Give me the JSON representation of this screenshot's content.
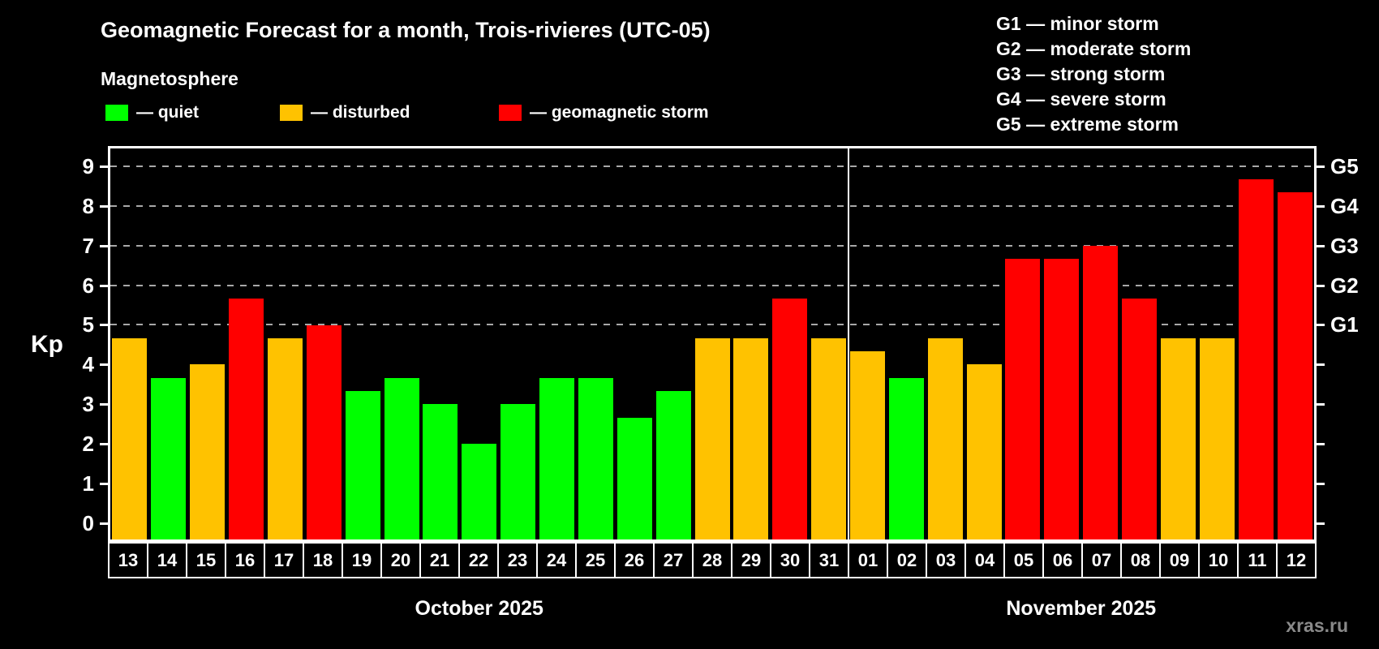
{
  "title": "Geomagnetic Forecast for a month, Trois-rivieres (UTC-05)",
  "subtitle": "Magnetosphere",
  "watermark": "xras.ru",
  "colors": {
    "background": "#000000",
    "quiet": "#00ff00",
    "disturbed": "#ffc200",
    "storm": "#ff0000",
    "frame": "#ffffff",
    "gridline": "#a8a8a8",
    "watermark": "#8a8a8a"
  },
  "legend": {
    "items": [
      {
        "status": "quiet",
        "label": "— quiet"
      },
      {
        "status": "disturbed",
        "label": "— disturbed"
      },
      {
        "status": "storm",
        "label": "— geomagnetic storm"
      }
    ]
  },
  "g_legend": [
    "G1 — minor storm",
    "G2 — moderate storm",
    "G3 — strong storm",
    "G4 — severe storm",
    "G5 — extreme storm"
  ],
  "chart_data": {
    "type": "bar",
    "ylabel": "Kp",
    "y_ticks": [
      0,
      1,
      2,
      3,
      4,
      5,
      6,
      7,
      8,
      9
    ],
    "ylim": [
      -0.4,
      9.44
    ],
    "grid": "dashed horizontal at Kp 5-9 only",
    "gridlines_kp": [
      5,
      6,
      7,
      8,
      9
    ],
    "right_axis_labels": [
      {
        "kp": 5,
        "label": "G1"
      },
      {
        "kp": 6,
        "label": "G2"
      },
      {
        "kp": 7,
        "label": "G3"
      },
      {
        "kp": 8,
        "label": "G4"
      },
      {
        "kp": 9,
        "label": "G5"
      }
    ],
    "months": [
      {
        "label": "October 2025",
        "bars": [
          {
            "day": "13",
            "kp": 4.67,
            "status": "disturbed"
          },
          {
            "day": "14",
            "kp": 3.67,
            "status": "quiet"
          },
          {
            "day": "15",
            "kp": 4.0,
            "status": "disturbed"
          },
          {
            "day": "16",
            "kp": 5.67,
            "status": "storm"
          },
          {
            "day": "17",
            "kp": 4.67,
            "status": "disturbed"
          },
          {
            "day": "18",
            "kp": 5.0,
            "status": "storm"
          },
          {
            "day": "19",
            "kp": 3.33,
            "status": "quiet"
          },
          {
            "day": "20",
            "kp": 3.67,
            "status": "quiet"
          },
          {
            "day": "21",
            "kp": 3.0,
            "status": "quiet"
          },
          {
            "day": "22",
            "kp": 2.0,
            "status": "quiet"
          },
          {
            "day": "23",
            "kp": 3.0,
            "status": "quiet"
          },
          {
            "day": "24",
            "kp": 3.67,
            "status": "quiet"
          },
          {
            "day": "25",
            "kp": 3.67,
            "status": "quiet"
          },
          {
            "day": "26",
            "kp": 2.67,
            "status": "quiet"
          },
          {
            "day": "27",
            "kp": 3.33,
            "status": "quiet"
          },
          {
            "day": "28",
            "kp": 4.67,
            "status": "disturbed"
          },
          {
            "day": "29",
            "kp": 4.67,
            "status": "disturbed"
          },
          {
            "day": "30",
            "kp": 5.67,
            "status": "storm"
          },
          {
            "day": "31",
            "kp": 4.67,
            "status": "disturbed"
          }
        ]
      },
      {
        "label": "November 2025",
        "bars": [
          {
            "day": "01",
            "kp": 4.33,
            "status": "disturbed"
          },
          {
            "day": "02",
            "kp": 3.67,
            "status": "quiet"
          },
          {
            "day": "03",
            "kp": 4.67,
            "status": "disturbed"
          },
          {
            "day": "04",
            "kp": 4.0,
            "status": "disturbed"
          },
          {
            "day": "05",
            "kp": 6.67,
            "status": "storm"
          },
          {
            "day": "06",
            "kp": 6.67,
            "status": "storm"
          },
          {
            "day": "07",
            "kp": 7.0,
            "status": "storm"
          },
          {
            "day": "08",
            "kp": 5.67,
            "status": "storm"
          },
          {
            "day": "09",
            "kp": 4.67,
            "status": "disturbed"
          },
          {
            "day": "10",
            "kp": 4.67,
            "status": "disturbed"
          },
          {
            "day": "11",
            "kp": 8.67,
            "status": "storm"
          },
          {
            "day": "12",
            "kp": 8.33,
            "status": "storm"
          }
        ]
      }
    ]
  }
}
